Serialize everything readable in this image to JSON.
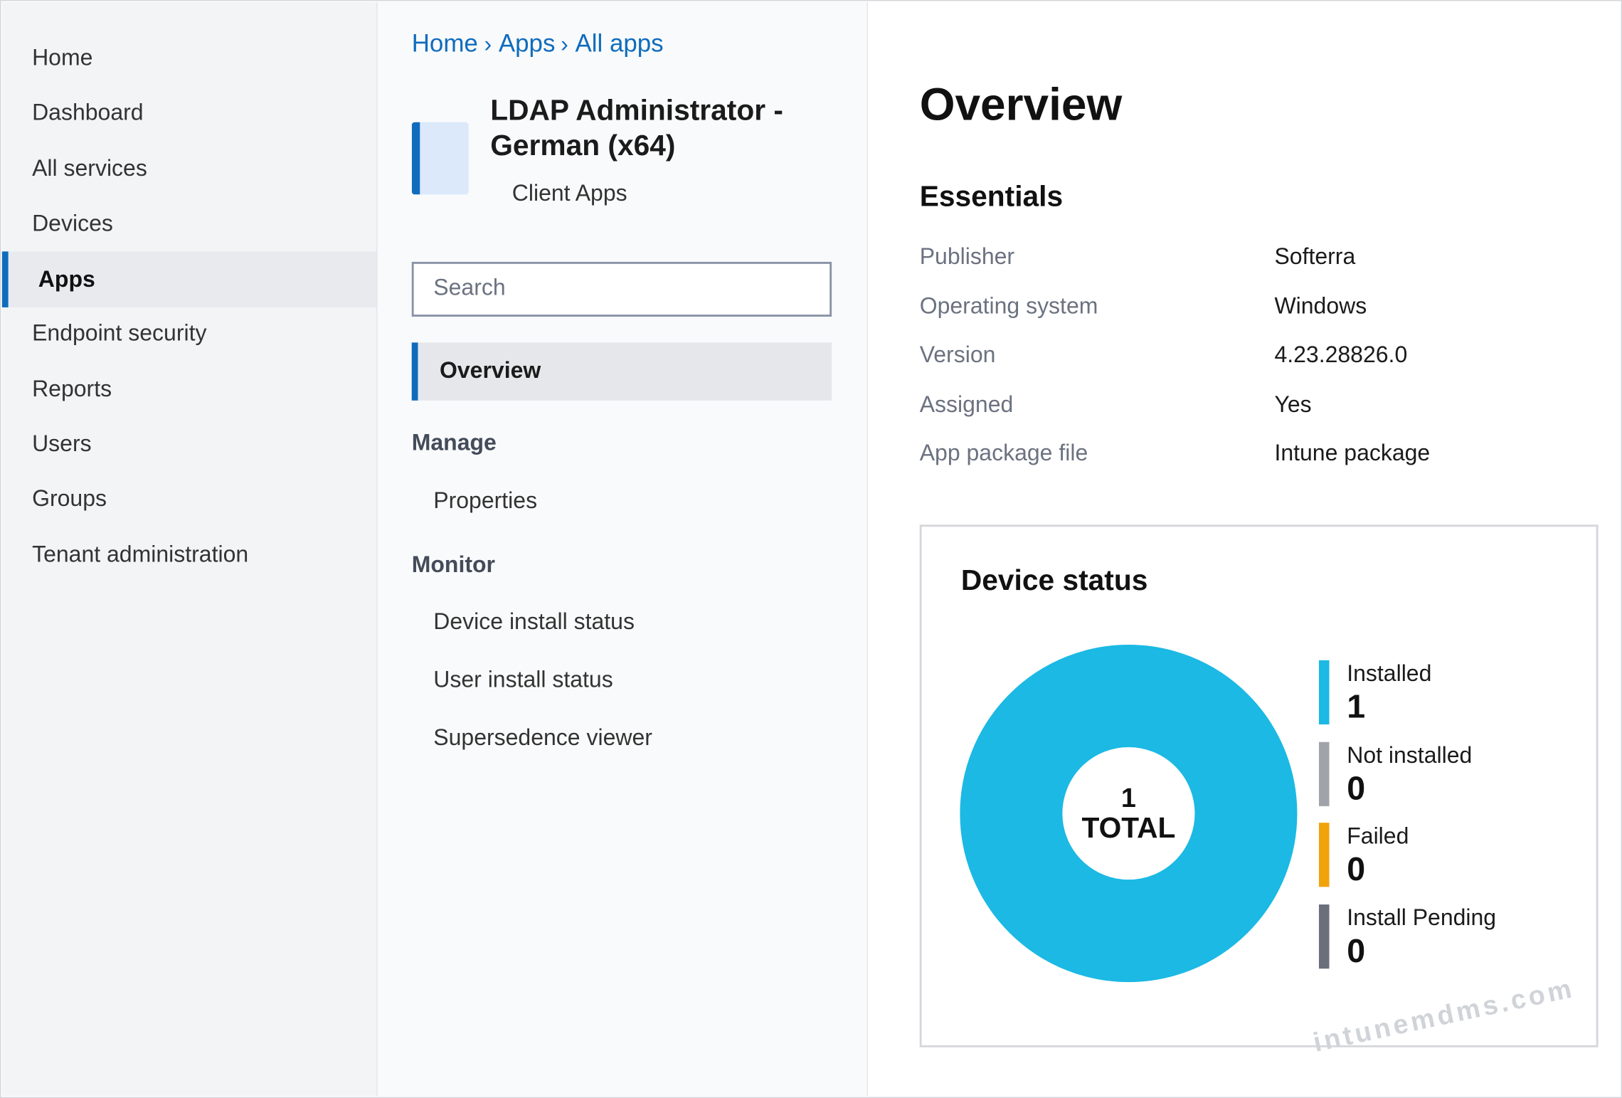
{
  "nav": {
    "items": [
      "Home",
      "Dashboard",
      "All services",
      "Devices",
      "Apps",
      "Endpoint security",
      "Reports",
      "Users",
      "Groups",
      "Tenant administration"
    ],
    "active": 4
  },
  "breadcrumb": {
    "items": [
      "Home",
      "Apps",
      "All apps"
    ],
    "separator": "›"
  },
  "app": {
    "title_lines": [
      "LDAP Administrator -",
      "German (x64)"
    ],
    "subtitle": "Client Apps"
  },
  "search_placeholder": "Search",
  "menu": {
    "active": "Overview",
    "sections": [
      {
        "heading": "Manage",
        "items": [
          "Properties"
        ]
      },
      {
        "heading": "Monitor",
        "items": [
          "Device install status",
          "User install status",
          "Supersedence viewer"
        ]
      }
    ]
  },
  "overview": {
    "title": "Overview",
    "essentials_title": "Essentials",
    "rows": [
      [
        "Publisher",
        "Softerra"
      ],
      [
        "Operating system",
        "Windows"
      ],
      [
        "Version",
        "4.23.28826.0"
      ],
      [
        "Assigned",
        "Yes"
      ],
      [
        "App package file",
        "Intune package"
      ]
    ]
  },
  "chart_data": {
    "type": "donut",
    "title": "Device status",
    "categories": [
      "Installed",
      "Not installed",
      "Failed",
      "Install Pending"
    ],
    "values": [
      1,
      0,
      0,
      0
    ],
    "colors": [
      "#1bb9e4",
      "#a0a3a9",
      "#f0a30a",
      "#6b6f7b"
    ],
    "total": 1,
    "total_label": "TOTAL"
  },
  "watermark": "intunemdms.com"
}
